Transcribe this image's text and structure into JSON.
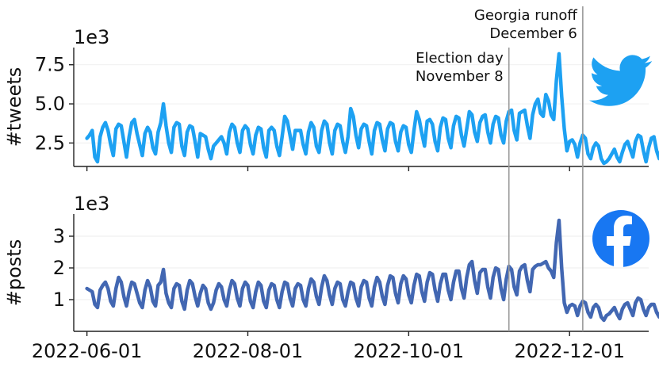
{
  "chart_data": {
    "type": "line",
    "shared_x": {
      "ticks": [
        "2022-06-01",
        "2022-08-01",
        "2022-10-01",
        "2022-12-01"
      ],
      "range": [
        "2022-05-27",
        "2022-12-31"
      ]
    },
    "annotations": [
      {
        "date": "2022-11-08",
        "lines": [
          "Election day",
          "November 8"
        ]
      },
      {
        "date": "2022-12-06",
        "lines": [
          "Georgia runoff",
          "December 6"
        ]
      }
    ],
    "panels": [
      {
        "ylabel": "#tweets",
        "multiplier": "1e3",
        "yticks": [
          2.5,
          5.0,
          7.5
        ],
        "ytick_labels": [
          "2.5",
          "5.0",
          "7.5"
        ],
        "ylim": [
          1.0,
          8.6
        ],
        "color": "#1da1f2",
        "logo": "twitter-bird-icon",
        "logo_color": "#1da1f2",
        "start_date": "2022-06-01",
        "values": [
          2.8,
          3.0,
          3.3,
          1.6,
          1.3,
          2.9,
          3.5,
          3.8,
          3.3,
          2.4,
          1.7,
          3.4,
          3.7,
          3.6,
          2.6,
          1.6,
          2.9,
          3.8,
          4.0,
          3.1,
          2.4,
          1.7,
          3.1,
          3.5,
          3.2,
          2.2,
          1.8,
          3.2,
          3.8,
          5.0,
          3.6,
          2.5,
          1.9,
          3.5,
          3.8,
          3.7,
          2.3,
          1.7,
          3.2,
          3.6,
          3.5,
          2.6,
          1.6,
          3.1,
          3.0,
          2.9,
          2.1,
          1.5,
          2.3,
          2.5,
          2.7,
          2.9,
          2.5,
          1.8,
          3.2,
          3.7,
          3.5,
          2.5,
          1.9,
          3.3,
          3.6,
          3.4,
          2.4,
          1.8,
          3.0,
          3.5,
          3.4,
          2.2,
          1.6,
          3.3,
          3.5,
          3.3,
          2.3,
          1.7,
          2.9,
          4.2,
          3.9,
          3.0,
          2.1,
          3.3,
          3.3,
          3.3,
          2.4,
          1.8,
          3.2,
          3.8,
          3.5,
          2.3,
          1.9,
          3.3,
          3.9,
          3.7,
          2.5,
          1.8,
          3.3,
          3.7,
          3.6,
          2.6,
          1.9,
          2.9,
          4.7,
          4.2,
          3.0,
          2.2,
          3.4,
          3.7,
          3.6,
          2.6,
          1.8,
          3.3,
          3.8,
          3.7,
          2.7,
          2.0,
          3.4,
          3.8,
          3.7,
          2.6,
          2.0,
          3.2,
          3.6,
          3.5,
          2.4,
          1.9,
          3.3,
          4.5,
          4.0,
          3.1,
          2.3,
          3.9,
          4.0,
          3.7,
          2.6,
          2.0,
          3.5,
          4.1,
          4.0,
          2.8,
          2.2,
          3.6,
          4.2,
          4.1,
          3.0,
          2.3,
          3.4,
          4.5,
          4.3,
          3.2,
          2.6,
          3.8,
          4.2,
          4.3,
          3.2,
          2.5,
          3.7,
          4.2,
          4.1,
          3.0,
          2.5,
          3.9,
          4.5,
          4.6,
          3.3,
          2.7,
          4.4,
          4.5,
          4.6,
          3.6,
          2.8,
          4.3,
          5.0,
          5.3,
          4.4,
          4.2,
          5.6,
          5.2,
          4.3,
          4.0,
          6.5,
          8.2,
          5.5,
          3.4,
          2.0,
          2.6,
          2.7,
          2.4,
          1.6,
          2.5,
          3.0,
          2.8,
          1.8,
          1.5,
          2.2,
          2.5,
          2.3,
          1.5,
          1.2,
          1.3,
          1.5,
          1.8,
          2.1,
          1.6,
          1.3,
          1.9,
          2.4,
          2.6,
          2.1,
          1.6,
          2.6,
          3.0,
          2.9,
          2.0,
          1.3,
          2.2,
          2.8,
          2.9,
          2.0,
          1.5,
          2.4,
          2.8,
          2.7,
          1.9,
          1.6,
          2.3,
          2.7,
          2.9,
          2.2,
          1.7,
          1.6
        ]
      },
      {
        "ylabel": "#posts",
        "multiplier": "1e3",
        "yticks": [
          1,
          2,
          3
        ],
        "ytick_labels": [
          "1",
          "2",
          "3"
        ],
        "ylim": [
          0.0,
          3.7
        ],
        "color": "#4267b2",
        "logo": "facebook-f-icon",
        "logo_color": "#1877f2",
        "start_date": "2022-06-01",
        "values": [
          1.35,
          1.3,
          1.25,
          0.85,
          0.75,
          1.3,
          1.45,
          1.55,
          1.35,
          0.95,
          0.8,
          1.35,
          1.7,
          1.55,
          1.1,
          0.8,
          1.25,
          1.55,
          1.5,
          1.2,
          0.9,
          0.75,
          1.3,
          1.6,
          1.4,
          0.95,
          0.8,
          1.45,
          1.55,
          1.95,
          1.2,
          0.9,
          0.75,
          1.35,
          1.5,
          1.45,
          0.95,
          0.7,
          1.3,
          1.6,
          1.5,
          1.1,
          0.8,
          1.2,
          1.45,
          1.35,
          0.9,
          0.7,
          0.9,
          1.3,
          1.5,
          1.4,
          1.0,
          0.8,
          1.3,
          1.6,
          1.5,
          1.05,
          0.8,
          1.35,
          1.55,
          1.45,
          0.95,
          0.75,
          1.25,
          1.55,
          1.45,
          0.95,
          0.75,
          1.3,
          1.5,
          1.45,
          1.0,
          0.75,
          1.25,
          1.55,
          1.5,
          1.05,
          0.8,
          1.35,
          1.5,
          1.45,
          1.0,
          0.8,
          1.35,
          1.65,
          1.55,
          1.1,
          0.85,
          1.4,
          1.75,
          1.6,
          1.15,
          0.85,
          1.35,
          1.55,
          1.5,
          1.0,
          0.8,
          1.25,
          1.55,
          1.5,
          1.05,
          0.8,
          1.4,
          1.6,
          1.55,
          1.05,
          0.8,
          1.4,
          1.7,
          1.55,
          1.1,
          0.85,
          1.45,
          1.75,
          1.7,
          1.2,
          0.9,
          1.5,
          1.75,
          1.65,
          1.15,
          0.9,
          1.45,
          1.8,
          1.75,
          1.25,
          0.95,
          1.55,
          1.85,
          1.8,
          1.3,
          0.95,
          1.5,
          1.8,
          1.8,
          1.3,
          1.0,
          1.55,
          1.9,
          1.9,
          1.35,
          1.05,
          1.7,
          2.1,
          2.2,
          1.6,
          1.2,
          1.85,
          1.95,
          1.95,
          1.4,
          1.05,
          1.7,
          2.0,
          1.95,
          1.35,
          1.0,
          1.65,
          2.05,
          1.95,
          1.4,
          1.15,
          1.9,
          2.05,
          2.1,
          1.6,
          1.25,
          1.95,
          2.05,
          2.1,
          2.1,
          2.15,
          2.2,
          2.0,
          1.9,
          1.7,
          2.8,
          3.5,
          2.0,
          0.9,
          0.6,
          0.8,
          0.85,
          0.8,
          0.5,
          0.8,
          0.95,
          0.9,
          0.6,
          0.45,
          0.75,
          0.85,
          0.75,
          0.45,
          0.35,
          0.5,
          0.55,
          0.65,
          0.75,
          0.55,
          0.4,
          0.7,
          0.85,
          0.9,
          0.7,
          0.5,
          0.9,
          1.05,
          1.0,
          0.7,
          0.5,
          0.75,
          0.85,
          0.85,
          0.6,
          0.45,
          0.75,
          0.85,
          0.8,
          0.55,
          0.45,
          0.7,
          0.8,
          0.85,
          0.65,
          0.5,
          0.7
        ]
      }
    ]
  }
}
